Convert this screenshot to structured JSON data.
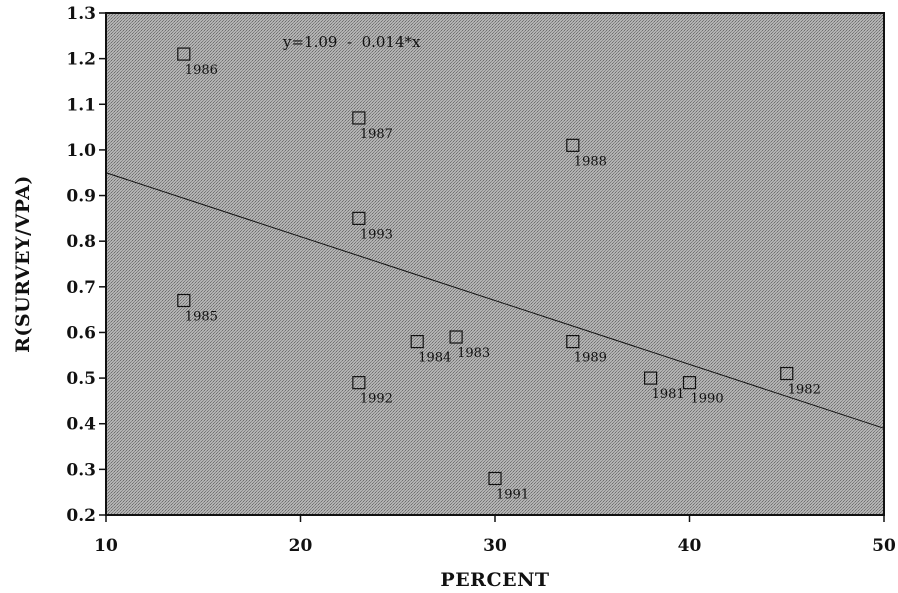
{
  "chart_data": {
    "type": "scatter",
    "title": "",
    "xlabel": "PERCENT",
    "ylabel": "R(SURVEY/VPA)",
    "xlim": [
      10,
      50
    ],
    "ylim": [
      0.2,
      1.3
    ],
    "x_ticks": [
      10,
      20,
      30,
      40,
      50
    ],
    "y_ticks": [
      0.2,
      0.3,
      0.4,
      0.5,
      0.6,
      0.7,
      0.8,
      0.9,
      1.0,
      1.1,
      1.2,
      1.3
    ],
    "x_tick_labels": [
      "10",
      "20",
      "30",
      "40",
      "50"
    ],
    "y_tick_labels": [
      "0.2",
      "0.3",
      "0.4",
      "0.5",
      "0.6",
      "0.7",
      "0.8",
      "0.9",
      "1.0",
      "1.1",
      "1.2",
      "1.3"
    ],
    "annotation": "y=1.09  -  0.014*x",
    "regression": {
      "intercept": 1.09,
      "slope": -0.014
    },
    "grid": false,
    "marker": "open-square",
    "colors": {
      "background": "#a6a6a6",
      "marker": "#111111",
      "line": "#111111"
    },
    "points": [
      {
        "label": "1981",
        "x": 38,
        "y": 0.5
      },
      {
        "label": "1982",
        "x": 45,
        "y": 0.51
      },
      {
        "label": "1983",
        "x": 28,
        "y": 0.59
      },
      {
        "label": "1984",
        "x": 26,
        "y": 0.58
      },
      {
        "label": "1985",
        "x": 14,
        "y": 0.67
      },
      {
        "label": "1986",
        "x": 14,
        "y": 1.21
      },
      {
        "label": "1987",
        "x": 23,
        "y": 1.07
      },
      {
        "label": "1988",
        "x": 34,
        "y": 1.01
      },
      {
        "label": "1989",
        "x": 34,
        "y": 0.58
      },
      {
        "label": "1990",
        "x": 40,
        "y": 0.49
      },
      {
        "label": "1991",
        "x": 30,
        "y": 0.28
      },
      {
        "label": "1992",
        "x": 23,
        "y": 0.49
      },
      {
        "label": "1993",
        "x": 23,
        "y": 0.85
      }
    ]
  }
}
